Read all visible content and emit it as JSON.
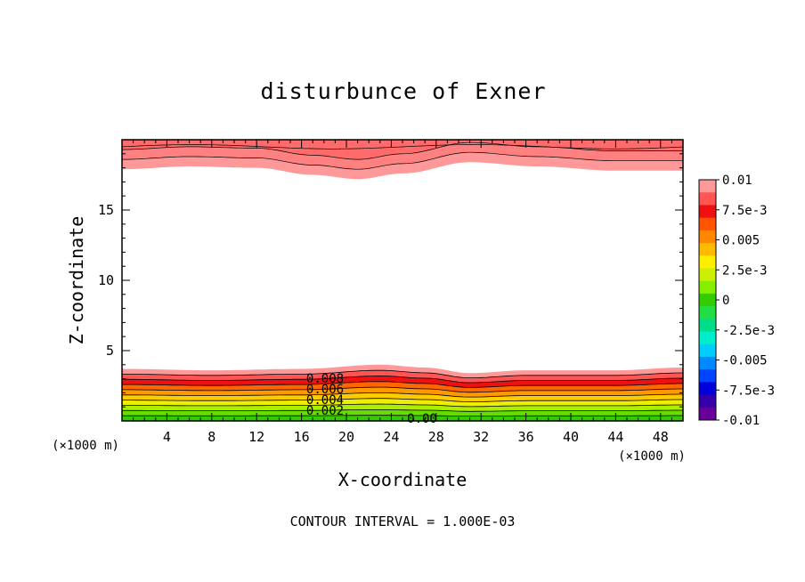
{
  "chart_data": {
    "type": "contour",
    "title": "disturbunce of Exner",
    "xlabel": "X-coordinate",
    "ylabel": "Z-coordinate",
    "x_unit": "(×1000 m)",
    "y_unit": "(×1000 m)",
    "xlim": [
      0,
      50
    ],
    "ylim": [
      0,
      20
    ],
    "x_ticks": [
      4,
      8,
      12,
      16,
      20,
      24,
      28,
      32,
      36,
      40,
      44,
      48
    ],
    "y_ticks": [
      5,
      10,
      15
    ],
    "contour_interval_text": "CONTOUR INTERVAL = 1.000E-03",
    "contour_labels": [
      "0.008",
      "0.006",
      "0.004",
      "0.002",
      "0.00"
    ],
    "colorbar": {
      "labels": [
        "0.01",
        "7.5e-3",
        "0.005",
        "2.5e-3",
        "0",
        "-2.5e-3",
        "-0.005",
        "-7.5e-3",
        "-0.01"
      ],
      "colors": [
        "#ff9999",
        "#ff5555",
        "#ee1111",
        "#ff5500",
        "#ff8800",
        "#ffbb00",
        "#ffee00",
        "#ccee00",
        "#88ee00",
        "#33cc00",
        "#22dd44",
        "#00dd88",
        "#00eecc",
        "#00ccff",
        "#0088ff",
        "#0044ff",
        "#0000dd",
        "#3300aa",
        "#660099"
      ]
    },
    "bottom_band": {
      "description_values_at_x": [
        0,
        8,
        16,
        23,
        27,
        31,
        36,
        44,
        50
      ],
      "top_height": [
        3.7,
        3.6,
        3.7,
        4.0,
        3.8,
        3.4,
        3.6,
        3.6,
        3.8
      ]
    },
    "top_band": {
      "x": [
        0,
        6,
        12,
        17,
        21,
        25,
        31,
        37,
        44,
        50
      ],
      "bottom_height": [
        17.9,
        18.1,
        18.0,
        17.5,
        17.2,
        17.6,
        18.4,
        18.1,
        17.8,
        17.8
      ]
    }
  }
}
